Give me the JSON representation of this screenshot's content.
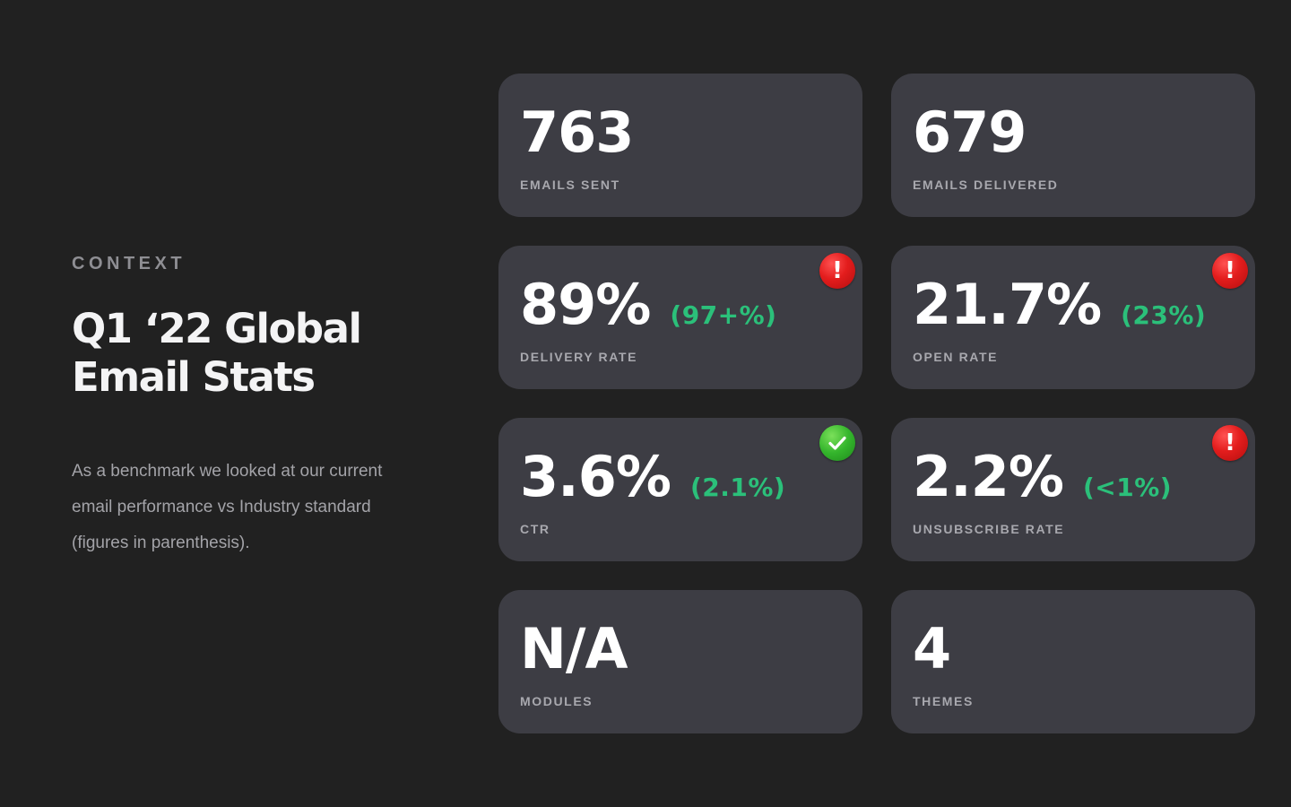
{
  "context": {
    "eyebrow": "CONTEXT",
    "title_line1": "Q1 ‘22 Global",
    "title_line2": "Email Stats",
    "description": "As a benchmark we looked at our current email performance vs Industry standard (figures in parenthesis)."
  },
  "colors": {
    "background": "#212121",
    "card": "#3d3d44",
    "benchmark_green": "#2bc07a",
    "warning_red": "#e31d1d",
    "success_green": "#34b52c"
  },
  "stats": [
    {
      "value": "763",
      "benchmark": "",
      "label": "EMAILS SENT",
      "status": "none",
      "status_icon": ""
    },
    {
      "value": "679",
      "benchmark": "",
      "label": "EMAILS DELIVERED",
      "status": "none",
      "status_icon": ""
    },
    {
      "value": "89%",
      "benchmark": "(97+%)",
      "label": "DELIVERY RATE",
      "status": "warning",
      "status_icon": "exclamation-icon",
      "status_symbol": "!"
    },
    {
      "value": "21.7%",
      "benchmark": "(23%)",
      "label": "OPEN RATE",
      "status": "warning",
      "status_icon": "exclamation-icon",
      "status_symbol": "!"
    },
    {
      "value": "3.6%",
      "benchmark": "(2.1%)",
      "label": "CTR",
      "status": "success",
      "status_icon": "checkmark-icon"
    },
    {
      "value": "2.2%",
      "benchmark": "(<1%)",
      "label": "UNSUBSCRIBE RATE",
      "status": "warning",
      "status_icon": "exclamation-icon",
      "status_symbol": "!"
    },
    {
      "value": "N/A",
      "benchmark": "",
      "label": "MODULES",
      "status": "none",
      "status_icon": ""
    },
    {
      "value": "4",
      "benchmark": "",
      "label": "THEMES",
      "status": "none",
      "status_icon": ""
    }
  ]
}
